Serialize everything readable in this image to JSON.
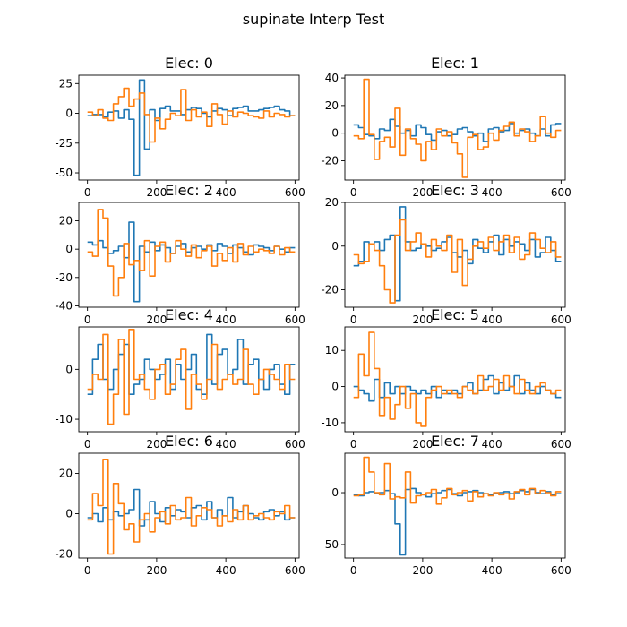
{
  "figure": {
    "title": "supinate Interp Test"
  },
  "colors": {
    "series_0": "#1f77b4",
    "series_1": "#ff7f0e"
  },
  "chart_data": [
    {
      "type": "line",
      "title": "Elec: 0",
      "xlabel": "",
      "ylabel": "",
      "xlim": [
        -25,
        612
      ],
      "ylim": [
        -56,
        32
      ],
      "xticks": [
        0,
        200,
        400,
        600
      ],
      "yticks": [
        -50,
        -25,
        0,
        25
      ],
      "grid": false,
      "series": [
        {
          "step_x": 15,
          "values": [
            -2,
            -1,
            -1,
            -3,
            1,
            2,
            -4,
            3,
            -5,
            -52,
            28,
            -30,
            3,
            -6,
            4,
            6,
            2,
            2,
            -1,
            3,
            5,
            4,
            0,
            -3,
            2,
            4,
            3,
            -2,
            4,
            5,
            6,
            2,
            2,
            3,
            4,
            5,
            6,
            3,
            2,
            -2
          ]
        },
        {
          "step_x": 15,
          "values": [
            1,
            -2,
            3,
            -4,
            -6,
            8,
            14,
            21,
            6,
            12,
            17,
            -1,
            -24,
            -4,
            -13,
            -5,
            0,
            -2,
            20,
            -6,
            3,
            -3,
            1,
            -11,
            8,
            -1,
            -9,
            2,
            -3,
            1,
            0,
            -2,
            -3,
            -4,
            2,
            -3,
            0,
            -1,
            -3,
            -2
          ]
        }
      ]
    },
    {
      "type": "line",
      "title": "Elec: 1",
      "xlabel": "",
      "ylabel": "",
      "xlim": [
        -25,
        612
      ],
      "ylim": [
        -34,
        42
      ],
      "xticks": [
        0,
        200,
        400,
        600
      ],
      "yticks": [
        -20,
        0,
        20,
        40
      ],
      "grid": false,
      "series": [
        {
          "step_x": 15,
          "values": [
            6,
            4,
            -1,
            -2,
            -4,
            3,
            2,
            10,
            5,
            0,
            2,
            -2,
            6,
            4,
            -1,
            -5,
            1,
            2,
            -2,
            -1,
            3,
            4,
            1,
            -2,
            0,
            -6,
            3,
            4,
            1,
            2,
            7,
            0,
            2,
            3,
            0,
            -2,
            3,
            -2,
            6,
            7
          ]
        },
        {
          "step_x": 15,
          "values": [
            -2,
            -4,
            39,
            -1,
            -19,
            -6,
            -3,
            -10,
            18,
            -16,
            3,
            -4,
            -8,
            -20,
            -6,
            -12,
            3,
            -2,
            1,
            -7,
            -15,
            -32,
            -3,
            -1,
            -12,
            -10,
            0,
            -5,
            2,
            5,
            8,
            -2,
            3,
            1,
            -6,
            -2,
            12,
            0,
            -3,
            2
          ]
        }
      ]
    },
    {
      "type": "line",
      "title": "Elec: 2",
      "xlabel": "",
      "ylabel": "",
      "xlim": [
        -25,
        612
      ],
      "ylim": [
        -41,
        33
      ],
      "xticks": [
        0,
        200,
        400,
        600
      ],
      "yticks": [
        -40,
        -20,
        0,
        20
      ],
      "grid": false,
      "series": [
        {
          "step_x": 15,
          "values": [
            5,
            3,
            6,
            1,
            -3,
            -1,
            2,
            -6,
            19,
            -37,
            2,
            -2,
            5,
            -1,
            3,
            1,
            -3,
            2,
            4,
            -2,
            1,
            2,
            0,
            3,
            -1,
            4,
            2,
            -3,
            3,
            1,
            -2,
            -4,
            3,
            2,
            1,
            -1,
            2,
            0,
            -2,
            1
          ]
        },
        {
          "step_x": 15,
          "values": [
            -2,
            -5,
            28,
            22,
            -12,
            -33,
            -20,
            4,
            -11,
            -8,
            -15,
            6,
            -19,
            2,
            5,
            -9,
            -3,
            6,
            0,
            -5,
            3,
            -6,
            -1,
            2,
            -12,
            -3,
            -8,
            1,
            -9,
            4,
            -4,
            2,
            -2,
            0,
            -1,
            -3,
            2,
            -4,
            1,
            -2
          ]
        }
      ]
    },
    {
      "type": "line",
      "title": "Elec: 3",
      "xlabel": "",
      "ylabel": "",
      "xlim": [
        -25,
        612
      ],
      "ylim": [
        -28,
        20
      ],
      "xticks": [
        0,
        200,
        400,
        600
      ],
      "yticks": [
        -20,
        0,
        20
      ],
      "grid": false,
      "series": [
        {
          "step_x": 15,
          "values": [
            -9,
            -7,
            2,
            1,
            2,
            -2,
            3,
            5,
            -25,
            18,
            2,
            -2,
            -1,
            1,
            0,
            -2,
            -1,
            2,
            4,
            -3,
            -5,
            -2,
            -8,
            3,
            -1,
            -3,
            2,
            5,
            -4,
            3,
            0,
            2,
            1,
            -2,
            3,
            -5,
            -3,
            4,
            -2,
            -7
          ]
        },
        {
          "step_x": 15,
          "values": [
            -4,
            -8,
            -7,
            1,
            -2,
            -9,
            -20,
            -26,
            5,
            12,
            -2,
            2,
            6,
            1,
            -5,
            3,
            0,
            -2,
            5,
            -12,
            3,
            -18,
            -6,
            0,
            2,
            -1,
            4,
            -2,
            2,
            5,
            -3,
            4,
            -6,
            -4,
            6,
            3,
            -1,
            -3,
            2,
            -5
          ]
        }
      ]
    },
    {
      "type": "line",
      "title": "Elec: 4",
      "xlabel": "",
      "ylabel": "",
      "xlim": [
        -25,
        612
      ],
      "ylim": [
        -12.5,
        8.5
      ],
      "xticks": [
        0,
        200,
        400,
        600
      ],
      "yticks": [
        -10,
        0
      ],
      "grid": false,
      "series": [
        {
          "step_x": 15,
          "values": [
            -5,
            2,
            5,
            -2,
            -4,
            0,
            3,
            5,
            -5,
            -3,
            -2,
            2,
            0,
            -2,
            -1,
            2,
            -4,
            1,
            -2,
            0,
            3,
            -4,
            -5,
            7,
            -3,
            3,
            4,
            -1,
            0,
            6,
            -3,
            1,
            2,
            -2,
            -4,
            0,
            1,
            -3,
            -5,
            1
          ]
        },
        {
          "step_x": 15,
          "values": [
            -4,
            -1,
            -2,
            7,
            -11,
            -5,
            6,
            -9,
            8,
            -2,
            -1,
            -4,
            -6,
            0,
            1,
            -5,
            -3,
            2,
            4,
            -8,
            -1,
            -3,
            -6,
            -2,
            5,
            -4,
            -2,
            -1,
            -3,
            -2,
            4,
            -3,
            -5,
            -2,
            0,
            -1,
            -2,
            -4,
            1,
            -2
          ]
        }
      ]
    },
    {
      "type": "line",
      "title": "Elec: 5",
      "xlabel": "",
      "ylabel": "",
      "xlim": [
        -25,
        612
      ],
      "ylim": [
        -12.5,
        16.5
      ],
      "xticks": [
        0,
        200,
        400,
        600
      ],
      "yticks": [
        -10,
        0,
        10
      ],
      "grid": false,
      "series": [
        {
          "step_x": 15,
          "values": [
            0,
            -1,
            -2,
            -4,
            2,
            -3,
            1,
            -2,
            0,
            -2,
            0,
            -1,
            -2,
            -1,
            -2,
            0,
            -3,
            -1,
            -2,
            -1,
            -2,
            0,
            1,
            -2,
            -1,
            2,
            3,
            -2,
            1,
            -1,
            0,
            3,
            -2,
            1,
            -1,
            -2,
            0,
            -1,
            -2,
            -3
          ]
        },
        {
          "step_x": 15,
          "values": [
            -3,
            9,
            3,
            15,
            5,
            -8,
            -3,
            -9,
            -5,
            0,
            -6,
            -2,
            -10,
            -11,
            -3,
            -1,
            0,
            -2,
            -1,
            -2,
            -3,
            0,
            -1,
            -2,
            3,
            -1,
            0,
            2,
            -1,
            3,
            0,
            -2,
            2,
            -1,
            -2,
            0,
            1,
            -1,
            -2,
            -1
          ]
        }
      ]
    },
    {
      "type": "line",
      "title": "Elec: 6",
      "xlabel": "",
      "ylabel": "",
      "xlim": [
        -25,
        612
      ],
      "ylim": [
        -22,
        30
      ],
      "xticks": [
        0,
        200,
        400,
        600
      ],
      "yticks": [
        -20,
        0,
        20
      ],
      "grid": false,
      "series": [
        {
          "step_x": 15,
          "values": [
            -2,
            0,
            -4,
            3,
            -3,
            1,
            -1,
            0,
            2,
            12,
            -6,
            -3,
            6,
            0,
            -4,
            3,
            -1,
            2,
            1,
            -2,
            3,
            4,
            -3,
            6,
            -2,
            2,
            -1,
            8,
            -2,
            1,
            4,
            0,
            -2,
            -3,
            1,
            2,
            -1,
            1,
            -3,
            -2
          ]
        },
        {
          "step_x": 15,
          "values": [
            -3,
            10,
            4,
            27,
            -20,
            15,
            5,
            -8,
            -5,
            -14,
            -3,
            0,
            -9,
            -2,
            1,
            -5,
            4,
            -3,
            -2,
            8,
            -6,
            -1,
            3,
            2,
            -2,
            -6,
            -1,
            -4,
            2,
            -3,
            4,
            -3,
            -1,
            0,
            -2,
            -3,
            1,
            0,
            4,
            -2
          ]
        }
      ]
    },
    {
      "type": "line",
      "title": "Elec: 7",
      "xlabel": "",
      "ylabel": "",
      "xlim": [
        -25,
        612
      ],
      "ylim": [
        -63,
        38
      ],
      "xticks": [
        0,
        200,
        400,
        600
      ],
      "yticks": [
        -50,
        0
      ],
      "grid": false,
      "series": [
        {
          "step_x": 15,
          "values": [
            -2,
            -3,
            0,
            1,
            -1,
            0,
            2,
            -1,
            -30,
            -60,
            3,
            4,
            0,
            -2,
            -4,
            -1,
            0,
            2,
            3,
            -1,
            -3,
            0,
            1,
            2,
            0,
            -1,
            -2,
            -1,
            0,
            1,
            -1,
            0,
            2,
            1,
            3,
            0,
            -1,
            1,
            -2,
            -1
          ]
        },
        {
          "step_x": 15,
          "values": [
            -3,
            -2,
            34,
            20,
            0,
            -2,
            28,
            -6,
            -4,
            -5,
            20,
            -10,
            -3,
            -2,
            0,
            3,
            -11,
            -5,
            4,
            -2,
            0,
            2,
            -8,
            1,
            -4,
            -1,
            -3,
            0,
            -2,
            -1,
            -6,
            1,
            3,
            -2,
            4,
            -1,
            2,
            0,
            -3,
            1
          ]
        }
      ]
    }
  ]
}
